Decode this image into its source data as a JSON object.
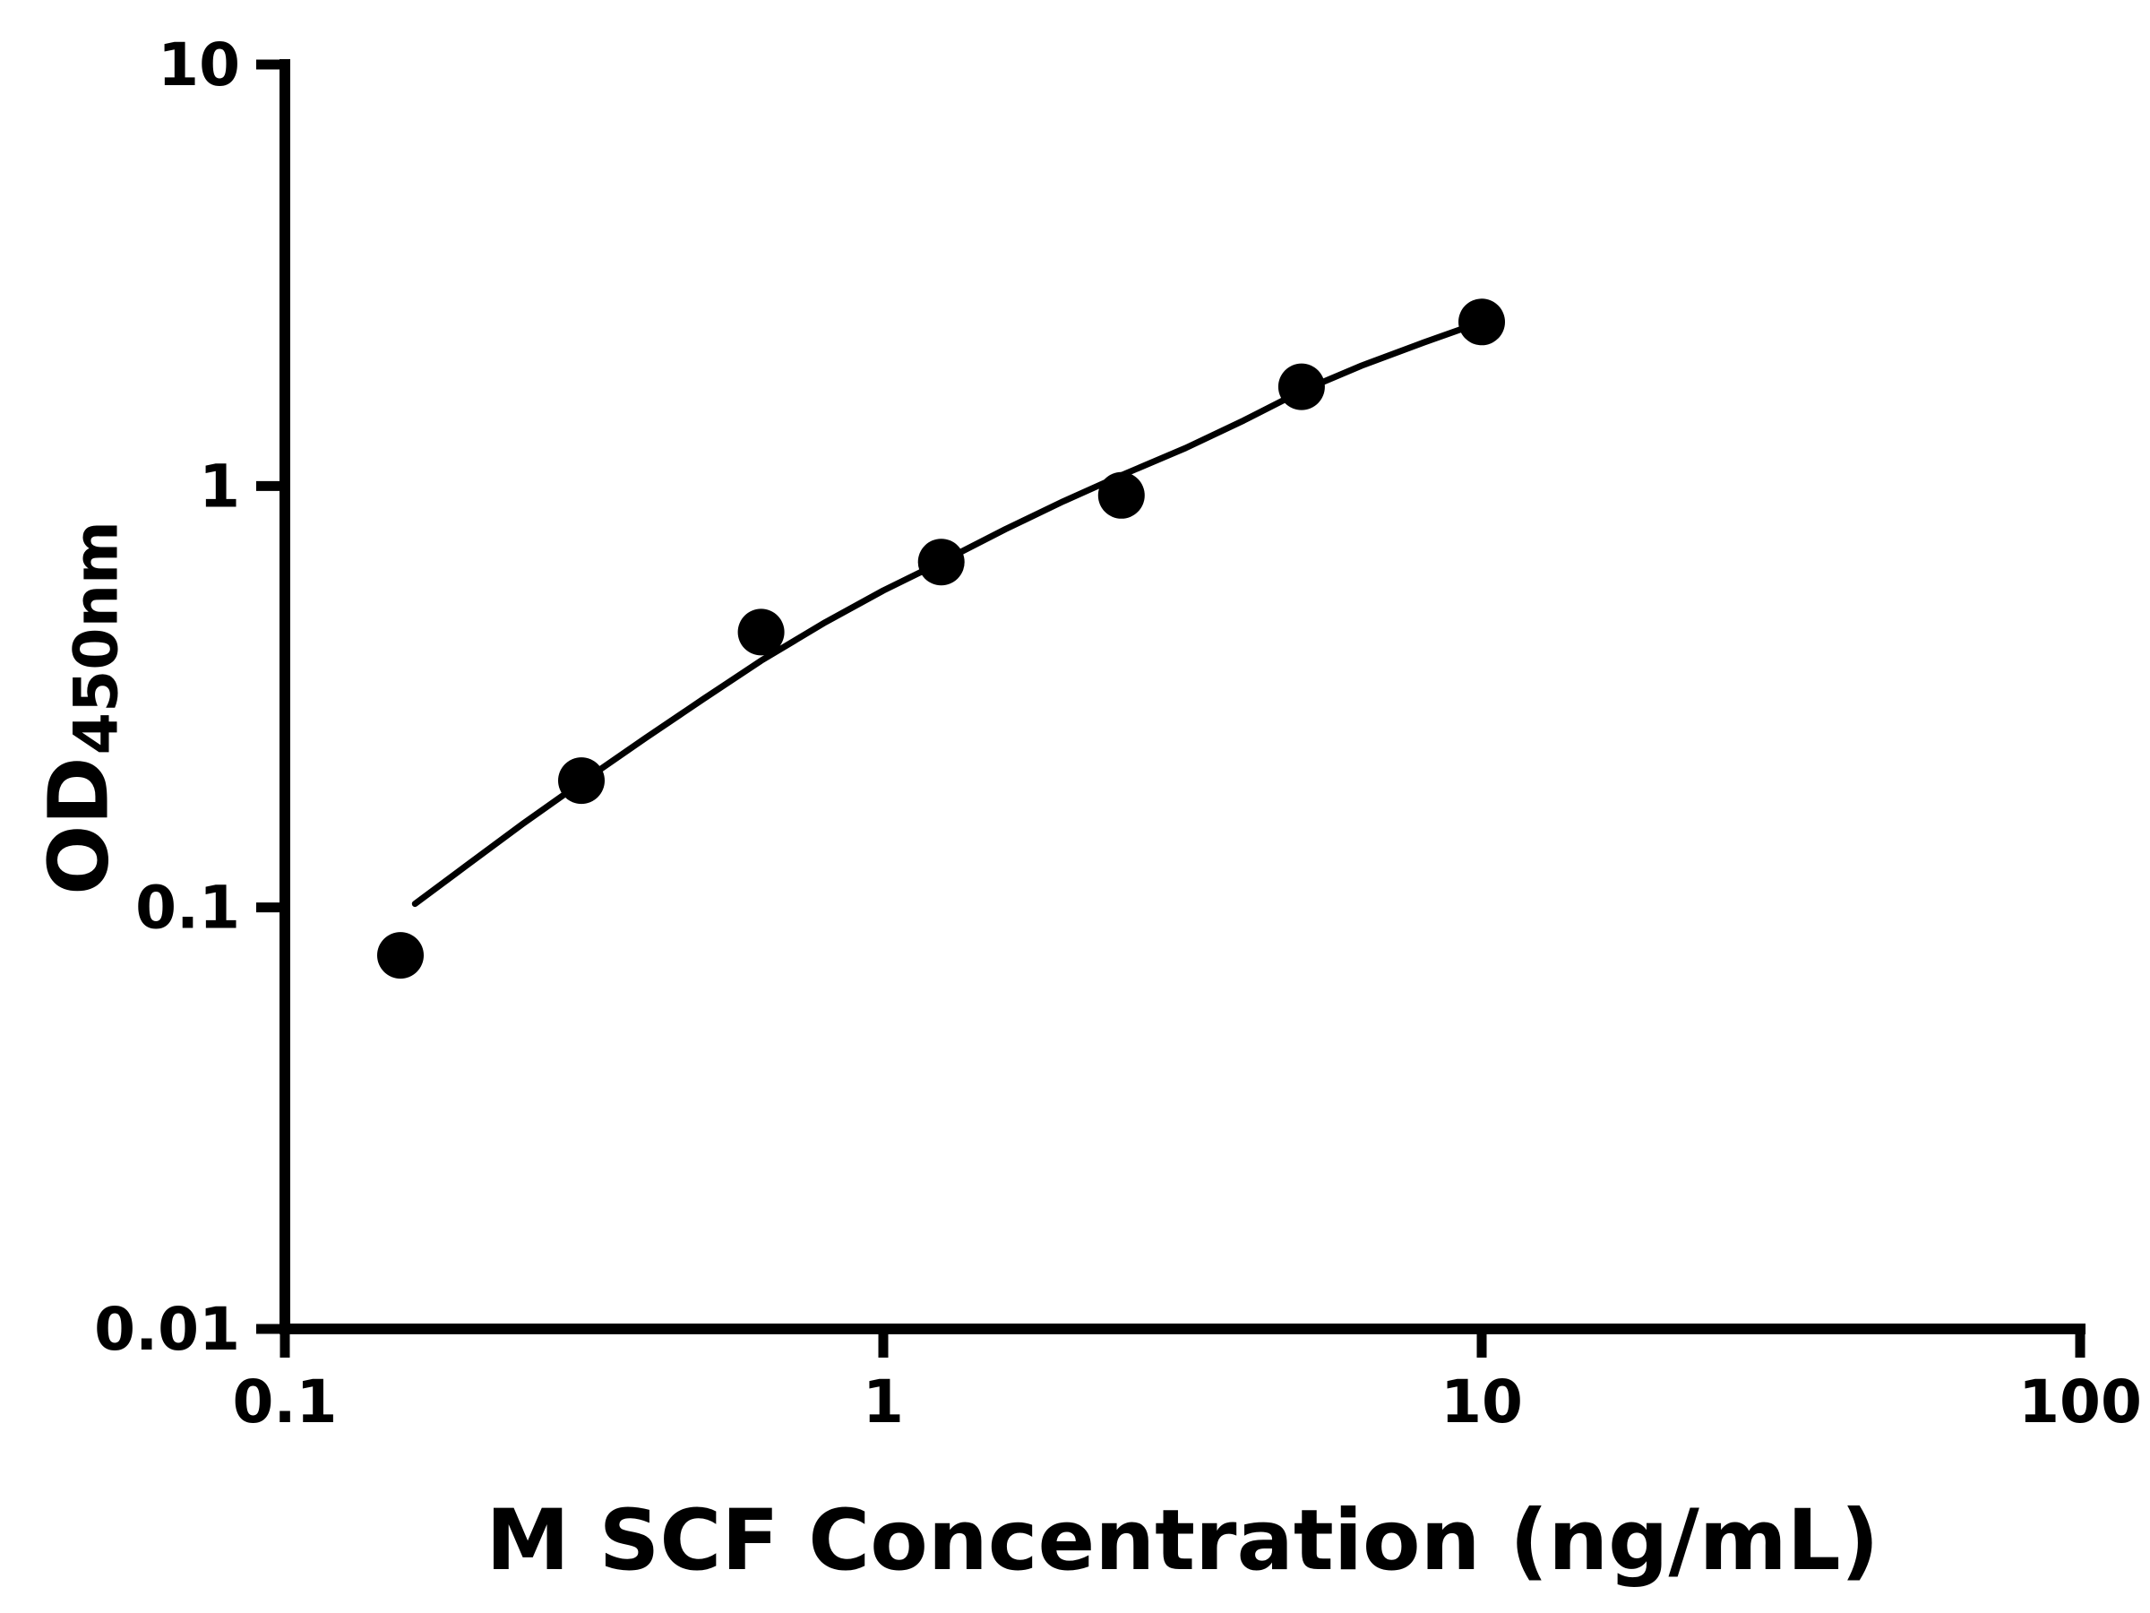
{
  "chart_data": {
    "type": "scatter",
    "title": "",
    "xlabel": "M SCF Concentration (ng/mL)",
    "ylabel": "OD450nm",
    "ylabel_main": "OD",
    "ylabel_sub": "450nm",
    "xscale": "log",
    "yscale": "log",
    "xlim": [
      0.1,
      100
    ],
    "ylim": [
      0.01,
      10
    ],
    "x_ticks": [
      0.1,
      1,
      10,
      100
    ],
    "x_tick_labels": [
      "0.1",
      "1",
      "10",
      "100"
    ],
    "y_ticks": [
      0.01,
      0.1,
      1,
      10
    ],
    "y_tick_labels": [
      "0.01",
      "0.1",
      "1",
      "10"
    ],
    "grid": false,
    "legend": false,
    "colors": {
      "foreground": "#000000",
      "background": "#ffffff",
      "marker": "#000000",
      "line": "#000000"
    },
    "series": [
      {
        "name": "standard-points",
        "kind": "scatter",
        "x": [
          0.156,
          0.313,
          0.625,
          1.25,
          2.5,
          5,
          10
        ],
        "y": [
          0.077,
          0.2,
          0.45,
          0.66,
          0.95,
          1.72,
          2.45
        ]
      },
      {
        "name": "fit-curve",
        "kind": "line",
        "x": [
          0.165,
          0.2,
          0.25,
          0.313,
          0.4,
          0.5,
          0.625,
          0.8,
          1.0,
          1.25,
          1.6,
          2.0,
          2.5,
          3.2,
          4.0,
          5.0,
          6.3,
          8.0,
          10.0
        ],
        "y": [
          0.102,
          0.125,
          0.158,
          0.198,
          0.252,
          0.312,
          0.385,
          0.475,
          0.565,
          0.66,
          0.79,
          0.92,
          1.06,
          1.23,
          1.43,
          1.68,
          1.93,
          2.19,
          2.45
        ]
      }
    ]
  }
}
